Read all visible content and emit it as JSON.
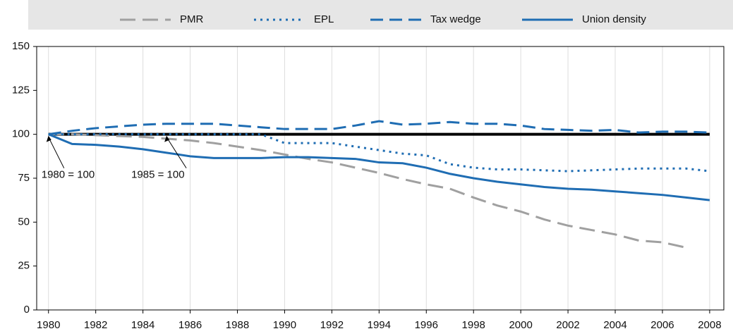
{
  "chart_data": {
    "type": "line",
    "x": [
      1980,
      1981,
      1982,
      1983,
      1984,
      1985,
      1986,
      1987,
      1988,
      1989,
      1990,
      1991,
      1992,
      1993,
      1994,
      1995,
      1996,
      1997,
      1998,
      1999,
      2000,
      2001,
      2002,
      2003,
      2004,
      2005,
      2006,
      2007,
      2008
    ],
    "series": [
      {
        "name": "PMR",
        "color": "#a0a0a0",
        "dash": "long-dash",
        "values": [
          100,
          100,
          99.5,
          99,
          98.5,
          97.5,
          96.5,
          95,
          93,
          91,
          88.5,
          86,
          84,
          81,
          78,
          74.5,
          71.5,
          69,
          64,
          59.5,
          56,
          51.5,
          48,
          45.5,
          43,
          39.5,
          38.5,
          35.5,
          null
        ]
      },
      {
        "name": "EPL",
        "color": "#1f6db3",
        "dash": "dot",
        "values": [
          100,
          100,
          100,
          100,
          100,
          100,
          100,
          100,
          100,
          100,
          95,
          95,
          95,
          93,
          91,
          89,
          88,
          83,
          81,
          80,
          80,
          79.5,
          79,
          79.5,
          80,
          80.5,
          80.5,
          80.5,
          79
        ]
      },
      {
        "name": "Tax wedge",
        "color": "#1f6db3",
        "dash": "dash",
        "values": [
          100,
          102,
          103.5,
          104.5,
          105.5,
          106,
          106,
          106,
          105,
          104,
          103,
          103,
          103,
          105,
          107.5,
          105.5,
          106,
          107,
          106,
          106,
          105,
          103,
          102.5,
          102,
          102.5,
          101,
          101.5,
          101.5,
          101
        ]
      },
      {
        "name": "Union density",
        "color": "#1f6db3",
        "dash": "solid",
        "values": [
          100,
          94.5,
          94,
          93,
          91.5,
          89.5,
          87.5,
          86.5,
          86.5,
          86.5,
          87,
          87,
          86.5,
          86,
          84,
          83.5,
          81,
          77.5,
          75,
          73,
          71.5,
          70,
          69,
          68.5,
          67.5,
          66.5,
          65.5,
          64,
          62.5
        ]
      }
    ],
    "reference_line": 100,
    "annotations": [
      {
        "text": "1980 = 100",
        "x": 1980,
        "y": 100
      },
      {
        "text": "1985 = 100",
        "x": 1985,
        "y": 100
      }
    ],
    "xlim": [
      1979.5,
      2008.6
    ],
    "xticks": [
      1980,
      1982,
      1984,
      1986,
      1988,
      1990,
      1992,
      1994,
      1996,
      1998,
      2000,
      2002,
      2004,
      2006,
      2008
    ],
    "ylim": [
      0,
      150
    ],
    "yticks": [
      0,
      25,
      50,
      75,
      100,
      125,
      150
    ],
    "grid": true,
    "legend": "top"
  }
}
